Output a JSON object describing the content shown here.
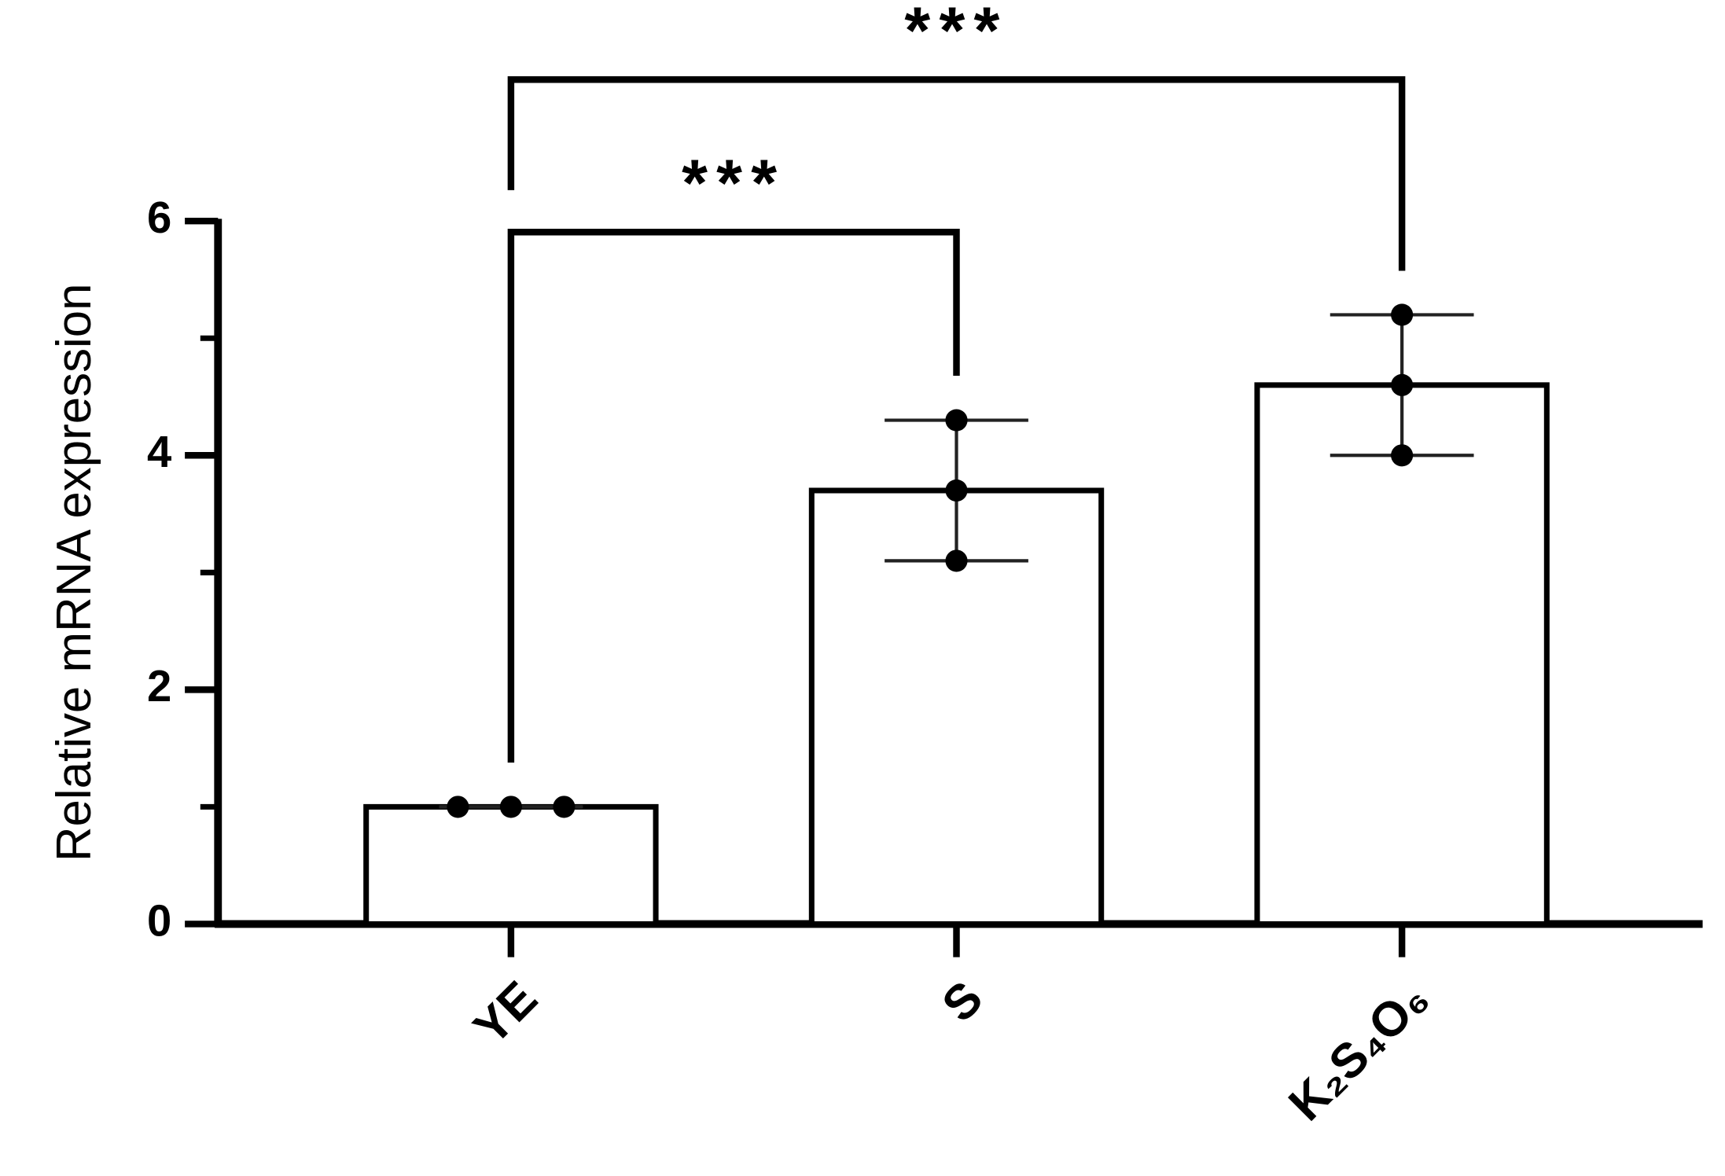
{
  "chart_data": {
    "type": "bar",
    "ylabel": "Relative mRNA expression",
    "categories": [
      "YE",
      "S",
      "K₂S₄O₆"
    ],
    "values": [
      1.0,
      3.7,
      4.6
    ],
    "errors": [
      0,
      0.6,
      0.6
    ],
    "points": [
      [
        1,
        1,
        1
      ],
      [
        4.3,
        3.7,
        3.1
      ],
      [
        5.2,
        4.6,
        4.0
      ]
    ],
    "ylim": [
      0,
      6
    ],
    "yticks": [
      0,
      2,
      4,
      6
    ],
    "yminorticks": [
      1,
      3,
      5
    ],
    "color": "#ffffff",
    "edgecolor": "#000000",
    "annotations": [
      "***",
      "***"
    ]
  }
}
